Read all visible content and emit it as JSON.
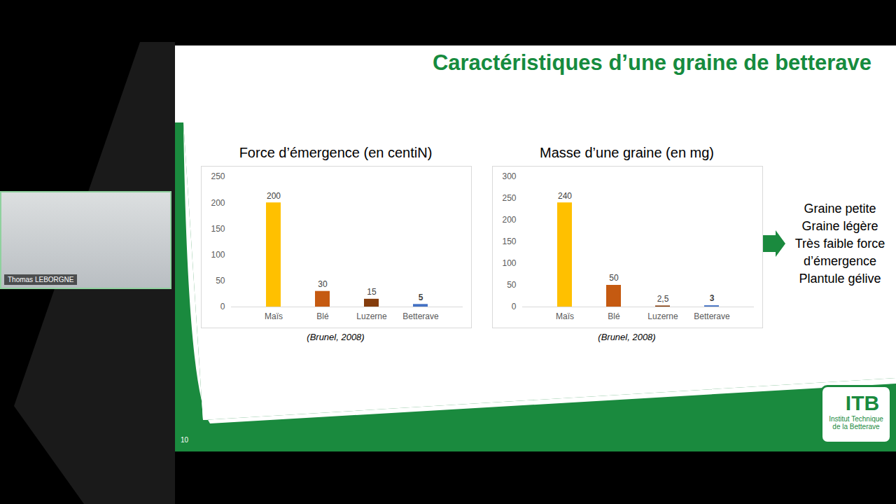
{
  "slide": {
    "title": "Caractéristiques d’une graine de betterave",
    "points": [
      "Graine petite",
      "Graine légère",
      "Très faible force d’émergence",
      "Plantule gélive"
    ],
    "page_number": "10",
    "speaker": "Thomas LEBORGNE",
    "logo": {
      "acronym": "ITB",
      "name": "Institut Technique de la Betterave"
    }
  },
  "chart_data": [
    {
      "type": "bar",
      "title": "Force d’émergence (en centiN)",
      "source": "(Brunel, 2008)",
      "categories": [
        "Maïs",
        "Blé",
        "Luzerne",
        "Betterave"
      ],
      "values": [
        200,
        30,
        15,
        5
      ],
      "colors": [
        "#ffc000",
        "#c55a11",
        "#843c0c",
        "#4472c4"
      ],
      "ylim": [
        0,
        250
      ],
      "yticks": [
        0,
        50,
        100,
        150,
        200,
        250
      ],
      "grid": false,
      "data_labels": true
    },
    {
      "type": "bar",
      "title": "Masse d’une graine (en mg)",
      "source": "(Brunel, 2008)",
      "categories": [
        "Maïs",
        "Blé",
        "Luzerne",
        "Betterave"
      ],
      "values": [
        240,
        50,
        2.5,
        3
      ],
      "value_labels": [
        "240",
        "50",
        "2,5",
        "3"
      ],
      "colors": [
        "#ffc000",
        "#c55a11",
        "#843c0c",
        "#4472c4"
      ],
      "ylim": [
        0,
        300
      ],
      "yticks": [
        0,
        50,
        100,
        150,
        200,
        250,
        300
      ],
      "grid": false,
      "data_labels": true
    }
  ]
}
